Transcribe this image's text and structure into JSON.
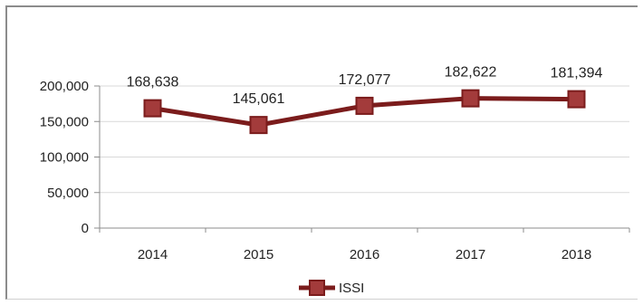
{
  "chart_data": {
    "type": "line",
    "categories": [
      "2014",
      "2015",
      "2016",
      "2017",
      "2018"
    ],
    "series": [
      {
        "name": "ISSI",
        "values": [
          168638,
          145061,
          172077,
          182622,
          181394
        ],
        "labels": [
          "168,638",
          "145,061",
          "172,077",
          "182,622",
          "181,394"
        ],
        "color": "#7b1c1c",
        "marker_color": "#a33b3b"
      }
    ],
    "y_ticks": [
      "0",
      "50,000",
      "100,000",
      "150,000",
      "200,000"
    ],
    "ylim": [
      0,
      200000
    ],
    "grid": true,
    "legend": "bottom",
    "title": "",
    "xlabel": "",
    "ylabel": ""
  }
}
